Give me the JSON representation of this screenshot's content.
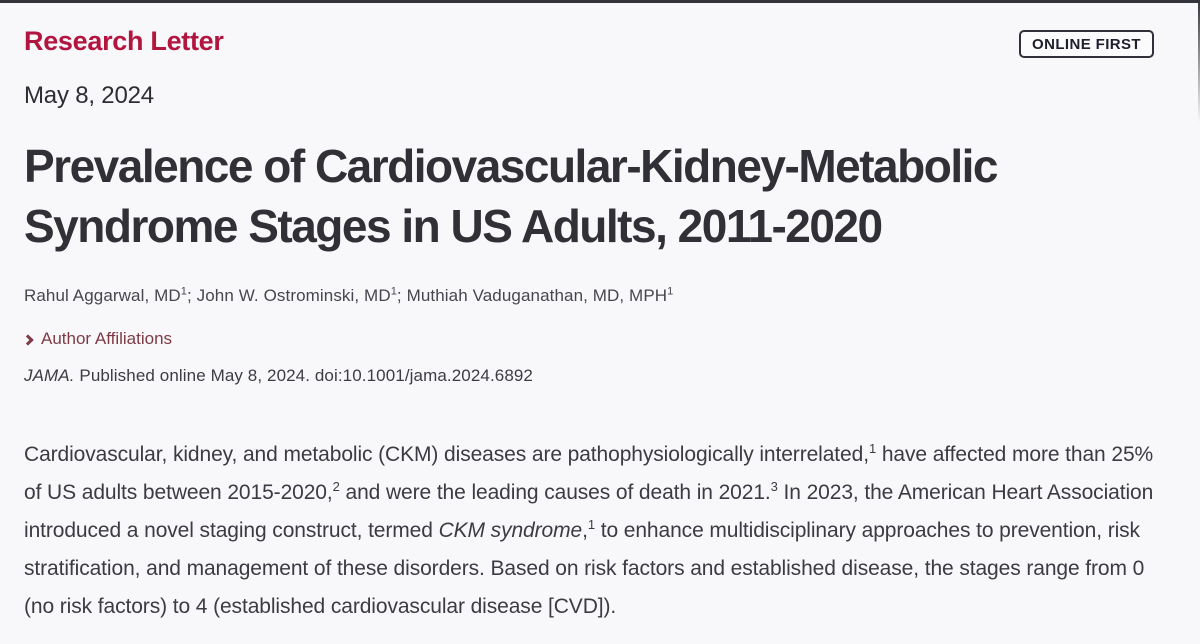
{
  "colors": {
    "accent_red": "#b2153f",
    "link_maroon": "#7e3b46",
    "title_gray": "#303036",
    "background": "#f8f8fa"
  },
  "header": {
    "section_label": "Research Letter",
    "online_first_badge": "ONLINE FIRST",
    "date": "May 8, 2024"
  },
  "article": {
    "title": "Prevalence of Cardiovascular-Kidney-Metabolic Syndrome Stages in US Adults, 2011-2020",
    "authors": {
      "author1": "Rahul Aggarwal, MD",
      "author1_sup": "1",
      "sep1": "; ",
      "author2": "John W. Ostrominski, MD",
      "author2_sup": "1",
      "sep2": "; ",
      "author3": "Muthiah Vaduganathan, MD, MPH",
      "author3_sup": "1"
    },
    "affiliations_link": "Author Affiliations",
    "citation": {
      "journal": "JAMA.",
      "rest": " Published online May 8, 2024. doi:10.1001/jama.2024.6892"
    }
  },
  "body_paragraph": {
    "seg1": "Cardiovascular, kidney, and metabolic (CKM) diseases are pathophysiologically interrelated,",
    "ref1": "1",
    "seg2": " have affected more than 25% of US adults between 2015-2020,",
    "ref2": "2",
    "seg3": " and were the leading causes of death in 2021.",
    "ref3": "3",
    "seg4": " In 2023, the American Heart Association introduced a novel staging construct, termed ",
    "term_italic": "CKM syndrome",
    "seg5": ",",
    "ref4": "1",
    "seg6": " to enhance multidisciplinary approaches to prevention, risk stratification, and management of these disorders. Based on risk factors and established disease, the stages range from 0 (no risk factors) to 4 (established cardiovascular disease [CVD])."
  },
  "icons": {
    "chevron_right": "chevron-right-icon"
  }
}
